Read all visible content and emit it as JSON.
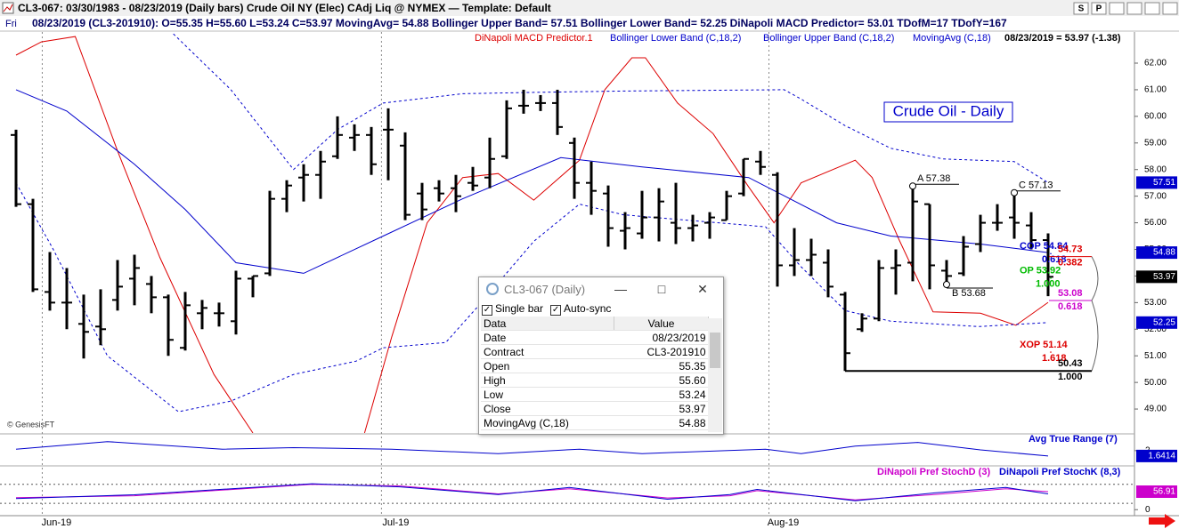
{
  "window": {
    "title": "CL3-067:  03/30/1983 - 08/23/2019  (Daily bars)   Crude Oil NY (Elec) CAdj Liq @ NYMEX  —  Template: Default",
    "buttons": [
      "S",
      "P"
    ]
  },
  "header": {
    "day": "Fri",
    "text": "08/23/2019 (CL3-201910):  O=55.35  H=55.60  L=53.24  C=53.97  MovingAvg= 54.88  Bollinger Upper Band= 57.51  Bollinger Lower Band= 52.25  DiNapoli MACD Predictor= 53.01  TDofM=17  TDofY=167"
  },
  "last_quote": "08/23/2019 = 53.97 (-1.38)",
  "copyright": "© GenesisFT",
  "chart_data": [
    {
      "type": "ohlc",
      "title": "Crude Oil - Daily",
      "categories": [
        null,
        null,
        null,
        null,
        null,
        null,
        null,
        null,
        null,
        null,
        null,
        null,
        null,
        null,
        null,
        null,
        null,
        null,
        null,
        null,
        null,
        null,
        null,
        null,
        null,
        null,
        null,
        null,
        null,
        null,
        null,
        null,
        null,
        null,
        null,
        null,
        null,
        null,
        null,
        null,
        null,
        null,
        null,
        null,
        null,
        null,
        null,
        null,
        null,
        null,
        null,
        null,
        null,
        null,
        null,
        null,
        null,
        null,
        null,
        null,
        null,
        null
      ],
      "open": [
        59.3,
        56.7,
        53.4,
        53.0,
        52.2,
        52.1,
        53.1,
        53.9,
        53.7,
        53.2,
        51.3,
        52.6,
        52.6,
        52.3,
        53.9,
        54.1,
        56.9,
        57.7,
        57.8,
        58.5,
        59.2,
        59.3,
        59.5,
        58.9,
        57.1,
        57.3,
        57.3,
        57.5,
        57.7,
        58.5,
        60.4,
        60.5,
        60.5,
        59.0,
        57.5,
        57.1,
        55.7,
        55.6,
        56.2,
        56.0,
        55.8,
        56.0,
        56.1,
        57.1,
        58.3,
        57.8,
        54.4,
        54.6,
        54.5,
        53.3,
        52.0,
        52.4,
        54.3,
        54.5,
        56.7,
        54.2,
        54.1,
        55.2,
        56.0,
        56.2,
        55.9,
        55.35
      ],
      "high": [
        59.5,
        56.9,
        54.9,
        54.3,
        53.3,
        53.5,
        54.6,
        54.8,
        54.0,
        53.3,
        53.4,
        53.1,
        53.0,
        54.2,
        54.0,
        57.2,
        57.6,
        58.2,
        58.7,
        60.0,
        59.7,
        59.6,
        60.3,
        59.4,
        57.5,
        57.6,
        57.8,
        58.1,
        59.2,
        60.6,
        61.0,
        60.8,
        61.0,
        59.2,
        58.3,
        57.4,
        56.4,
        57.2,
        57.3,
        57.5,
        56.3,
        56.4,
        57.2,
        58.4,
        58.7,
        57.9,
        55.8,
        55.4,
        55.0,
        53.4,
        52.6,
        54.6,
        55.0,
        57.38,
        56.7,
        54.6,
        55.5,
        56.3,
        56.7,
        57.13,
        56.4,
        55.6
      ],
      "low": [
        56.6,
        53.4,
        52.7,
        52.0,
        50.9,
        51.4,
        52.7,
        52.9,
        52.6,
        51.0,
        51.2,
        52.0,
        52.1,
        51.8,
        53.2,
        54.0,
        56.4,
        56.8,
        56.9,
        58.4,
        58.7,
        57.8,
        57.6,
        56.1,
        56.1,
        56.8,
        56.4,
        57.2,
        57.3,
        58.4,
        60.1,
        60.2,
        59.3,
        56.9,
        56.3,
        55.1,
        55.0,
        55.4,
        55.3,
        55.2,
        55.3,
        55.4,
        56.1,
        57.0,
        57.8,
        53.6,
        54.0,
        54.0,
        53.2,
        50.43,
        51.9,
        52.3,
        53.3,
        53.8,
        53.5,
        53.68,
        54.0,
        54.9,
        55.7,
        55.4,
        55.0,
        53.24
      ],
      "close": [
        56.7,
        53.5,
        53.0,
        53.0,
        51.9,
        52.0,
        53.6,
        54.3,
        53.2,
        51.6,
        52.9,
        52.8,
        52.6,
        53.9,
        54.0,
        56.9,
        57.4,
        57.8,
        58.3,
        59.3,
        59.3,
        58.2,
        59.5,
        56.3,
        56.5,
        57.1,
        57.0,
        57.4,
        58.4,
        60.3,
        60.4,
        60.5,
        59.6,
        57.5,
        57.2,
        55.8,
        55.8,
        56.2,
        56.8,
        55.8,
        55.9,
        56.2,
        57.0,
        58.4,
        58.1,
        54.4,
        54.6,
        54.8,
        53.6,
        51.1,
        52.4,
        54.3,
        54.4,
        56.8,
        54.4,
        54.0,
        55.1,
        56.0,
        56.0,
        56.0,
        55.35,
        53.97
      ],
      "color": "#000000",
      "ylim": [
        48.1,
        63.17
      ],
      "yticks": [
        {
          "value": 49,
          "label": "49.00"
        },
        {
          "value": 50,
          "label": "50.00"
        },
        {
          "value": 51,
          "label": "51.00"
        },
        {
          "value": 52,
          "label": "52.00"
        },
        {
          "value": 53,
          "label": "53.00"
        },
        {
          "value": 54,
          "label": "54.00"
        },
        {
          "value": 55,
          "label": "55.00"
        },
        {
          "value": 56,
          "label": "56.00"
        },
        {
          "value": 57,
          "label": "57.00"
        },
        {
          "value": 58,
          "label": "58.00"
        },
        {
          "value": 59,
          "label": "59.00"
        },
        {
          "value": 60,
          "label": "60.00"
        },
        {
          "value": 61,
          "label": "61.00"
        },
        {
          "value": 62,
          "label": "62.00"
        }
      ],
      "xticks": [
        {
          "value": 1.55,
          "label": "Jun-19"
        },
        {
          "value": 21.6,
          "label": "Jul-19"
        },
        {
          "value": 44.5,
          "label": "Aug-19"
        }
      ],
      "series": [
        {
          "name": "DiNapoli MACD Predictor.1",
          "color": "#dd0000",
          "dash": false,
          "x": [
            0,
            1.5,
            3.5,
            6,
            8.5,
            11.7,
            14,
            null,
            20.6,
            22.2,
            24.3,
            26.4,
            28.5,
            30.6,
            33.3,
            34.8,
            36.4,
            37.2,
            39.1,
            41.2,
            43.3,
            44.8,
            46.4,
            49.6,
            50.6,
            52.2,
            54.2,
            57,
            59.1,
            61
          ],
          "values": [
            62.3,
            62.8,
            63.0,
            58.7,
            54.7,
            50.3,
            48.1,
            null,
            48.1,
            51.7,
            56.0,
            57.7,
            57.85,
            56.85,
            58.35,
            61.0,
            62.2,
            62.2,
            60.5,
            59.35,
            57.35,
            56.0,
            57.5,
            58.35,
            57.7,
            55.35,
            52.65,
            52.6,
            52.15,
            53.01
          ]
        },
        {
          "name": "Bollinger Lower Band (C,18,2)",
          "color": "#0000cc",
          "dash": true,
          "x": [
            0,
            2.2,
            5.4,
            9.6,
            12.7,
            16.4,
            20.1,
            21.7,
            25.4,
            27.5,
            30.6,
            33.3,
            35.9,
            44.3,
            46.4,
            49,
            51.7,
            56.9,
            61
          ],
          "values": [
            57.5,
            55.0,
            51.0,
            48.9,
            49.3,
            50.3,
            50.8,
            51.3,
            51.5,
            53.0,
            55.3,
            56.7,
            56.3,
            55.85,
            54.35,
            52.7,
            52.3,
            52.1,
            52.25
          ]
        },
        {
          "name": "Bollinger Upper Band (C,18,2)",
          "color": "#0000cc",
          "dash": true,
          "x": [
            9.3,
            12.7,
            16.4,
            19,
            21.7,
            26.4,
            30.6,
            35.9,
            45.4,
            46.4,
            49,
            51.7,
            54.8,
            59,
            61
          ],
          "values": [
            63.1,
            61.0,
            58.0,
            59.5,
            60.5,
            60.85,
            60.9,
            60.95,
            61.0,
            60.65,
            59.65,
            58.8,
            58.4,
            58.3,
            57.51
          ]
        },
        {
          "name": "MovingAvg (C,18)",
          "color": "#0000cc",
          "dash": false,
          "x": [
            0,
            3,
            7,
            10,
            13,
            17,
            21.7,
            26.4,
            32.2,
            37,
            43.3,
            48.5,
            51.7,
            57,
            61
          ],
          "values": [
            61.0,
            60.2,
            58.2,
            56.5,
            54.5,
            54.1,
            55.5,
            56.9,
            58.45,
            58.1,
            57.7,
            56.0,
            55.5,
            55.2,
            54.88
          ]
        }
      ],
      "points": [
        {
          "label": "A 57.38",
          "x": 53,
          "value": 57.38
        },
        {
          "label": "B 53.68",
          "x": 55,
          "value": 53.68
        },
        {
          "label": "C 57.13",
          "x": 59,
          "value": 57.13
        }
      ],
      "fib": [
        {
          "label": "COP 54.84",
          "ratio": "0.618",
          "value": 54.84,
          "color": "#0000cc"
        },
        {
          "label": "54.73",
          "ratio": "0.382",
          "value": 54.73,
          "color": "#dd0000"
        },
        {
          "label": "OP 53.92",
          "ratio": "1.000",
          "value": 53.92,
          "color": "#00bb00"
        },
        {
          "label": "53.08",
          "ratio": "0.618",
          "value": 53.08,
          "color": "#cc00cc"
        },
        {
          "label": "XOP 51.14",
          "ratio": "1.618",
          "value": 51.14,
          "color": "#dd0000"
        },
        {
          "label": "50.43",
          "ratio": "1.000",
          "value": 50.43,
          "color": "#000000"
        }
      ],
      "flags": [
        {
          "value": 57.51,
          "color": "#0000cc"
        },
        {
          "value": 54.88,
          "color": "#0000cc"
        },
        {
          "value": 53.97,
          "color": "#000000"
        },
        {
          "value": 52.25,
          "color": "#0000cc"
        }
      ]
    },
    {
      "type": "line",
      "ylim": [
        1.1,
        3.0
      ],
      "yticks": [
        2
      ],
      "series": [
        {
          "name": "Avg True Range (7)",
          "color": "#0000cc",
          "x": [
            0,
            5.4,
            12.2,
            16.4,
            22.2,
            28.5,
            33.3,
            37,
            44.3,
            46.4,
            49.6,
            53.3,
            57,
            61
          ],
          "values": [
            2.1,
            2.6,
            2.1,
            2.2,
            2.1,
            1.8,
            2.1,
            1.8,
            2.1,
            1.8,
            2.3,
            2.55,
            2.05,
            1.6414
          ]
        }
      ],
      "last_value": 1.6414,
      "last_color": "#0000cc"
    },
    {
      "type": "line",
      "ylim": [
        -19,
        130
      ],
      "yticks": [
        0
      ],
      "levels": [
        20,
        80
      ],
      "series": [
        {
          "name": "DiNapoli Pref StochD (3)",
          "color": "#cc00cc",
          "x": [
            0,
            7,
            17.5,
            22.7,
            28.5,
            32.7,
            38.5,
            42.2,
            43.8,
            49.6,
            54.3,
            58.5,
            61
          ],
          "values": [
            38,
            44,
            80,
            75,
            50,
            66,
            37,
            44,
            60,
            31,
            48,
            66,
            56.91
          ]
        },
        {
          "name": "DiNapoli Pref StochK (8,3)",
          "color": "#0000cc",
          "x": [
            0,
            7,
            17.5,
            22.7,
            28.5,
            32.7,
            38.5,
            42.2,
            43.8,
            49.6,
            54.3,
            58.5,
            61
          ],
          "values": [
            35,
            47,
            82,
            72,
            48,
            70,
            33,
            48,
            64,
            28,
            53,
            70,
            50
          ]
        }
      ],
      "last_value": 56.91,
      "last_color": "#cc00cc"
    }
  ],
  "data_window": {
    "title": "CL3-067 (Daily)",
    "options": [
      "Single bar",
      "Auto-sync"
    ],
    "columns": [
      "Data",
      "Value"
    ],
    "rows": [
      [
        "Date",
        "08/23/2019"
      ],
      [
        "Contract",
        "CL3-201910"
      ],
      [
        "Open",
        "55.35"
      ],
      [
        "High",
        "55.60"
      ],
      [
        "Low",
        "53.24"
      ],
      [
        "Close",
        "53.97"
      ],
      [
        "MovingAvg (C,18)",
        "54.88"
      ]
    ]
  }
}
